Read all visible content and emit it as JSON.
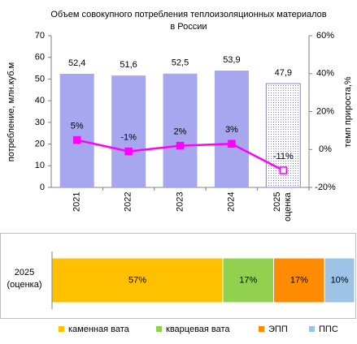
{
  "chart_data": [
    {
      "type": "bar",
      "title": "Объем совокупного потребления теплоизоляционных материалов в России",
      "categories": [
        "2021",
        "2022",
        "2023",
        "2024",
        "2025\nоценка"
      ],
      "ylabel": "потребление, млн.куб.м",
      "y2label": "темп прироста,%",
      "ylim": [
        0,
        70
      ],
      "yticks": [
        0,
        10,
        20,
        30,
        40,
        50,
        60,
        70
      ],
      "y2lim": [
        -20,
        60
      ],
      "y2ticks": [
        {
          "value": -20,
          "label": "-20%"
        },
        {
          "value": 0,
          "label": "0%"
        },
        {
          "value": 20,
          "label": "20%"
        },
        {
          "value": 40,
          "label": "40%"
        },
        {
          "value": 60,
          "label": "60%"
        }
      ],
      "series": [
        {
          "type": "bar",
          "color": "#a7a7ef",
          "values": [
            52.4,
            51.6,
            52.5,
            53.9,
            47.9
          ],
          "value_labels": [
            "52,4",
            "51,6",
            "52,5",
            "53,9",
            "47,9"
          ]
        },
        {
          "type": "line",
          "axis": "y2",
          "color": "#ff00ff",
          "values": [
            5,
            -1,
            2,
            3,
            -11
          ],
          "value_labels": [
            "5%",
            "-1%",
            "2%",
            "3%",
            "-11%"
          ]
        }
      ]
    },
    {
      "type": "stacked-bar",
      "categories": [
        "2025\n(оценка)"
      ],
      "legend": "bottom",
      "series": [
        {
          "name": "каменная вата",
          "color": "#ffc000",
          "values": [
            57
          ],
          "value_labels": [
            "57%"
          ]
        },
        {
          "name": "кварцевая вата",
          "color": "#92d050",
          "values": [
            17
          ],
          "value_labels": [
            "17%"
          ]
        },
        {
          "name": "ЭПП",
          "color": "#ff8c00",
          "values": [
            17
          ],
          "value_labels": [
            "17%"
          ]
        },
        {
          "name": "ППС",
          "color": "#9dc3e6",
          "values": [
            10
          ],
          "value_labels": [
            "10%"
          ]
        }
      ]
    }
  ]
}
